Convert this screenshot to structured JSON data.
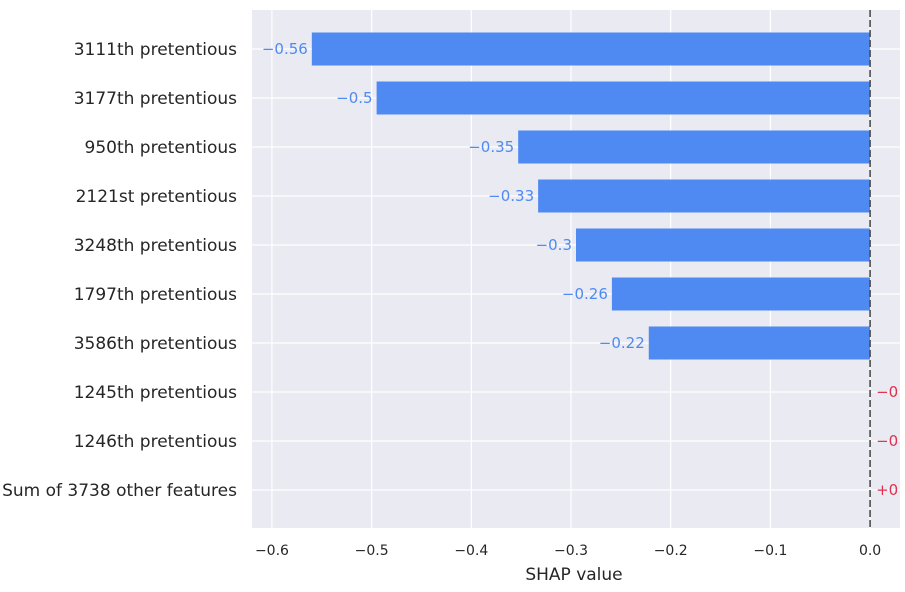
{
  "chart_data": {
    "type": "bar",
    "orientation": "horizontal",
    "xlabel": "SHAP value",
    "xlim": [
      -0.62,
      0.03
    ],
    "xticks": [
      "−0.6",
      "−0.5",
      "−0.4",
      "−0.3",
      "−0.2",
      "−0.1",
      "0.0"
    ],
    "xtick_values": [
      -0.6,
      -0.5,
      -0.4,
      -0.3,
      -0.2,
      -0.1,
      0.0
    ],
    "grid": true,
    "categories": [
      "3111th pretentious",
      "3177th pretentious",
      "950th pretentious",
      "2121st pretentious",
      "3248th pretentious",
      "1797th pretentious",
      "3586th pretentious",
      "1245th pretentious",
      "1246th pretentious",
      "Sum of 3738 other features"
    ],
    "values": [
      -0.56,
      -0.495,
      -0.353,
      -0.333,
      -0.295,
      -0.259,
      -0.222,
      0,
      0,
      0
    ],
    "value_labels": [
      "−0.56",
      "−0.5",
      "−0.35",
      "−0.33",
      "−0.3",
      "−0.26",
      "−0.22",
      "−0",
      "−0",
      "+0"
    ],
    "colors": {
      "negative": "#4e8af2",
      "negative_text": "#4e8af2",
      "positive_text": "#e0304f",
      "background": "#eaeaf2",
      "grid": "#ffffff",
      "zero_line": "#444444"
    }
  }
}
